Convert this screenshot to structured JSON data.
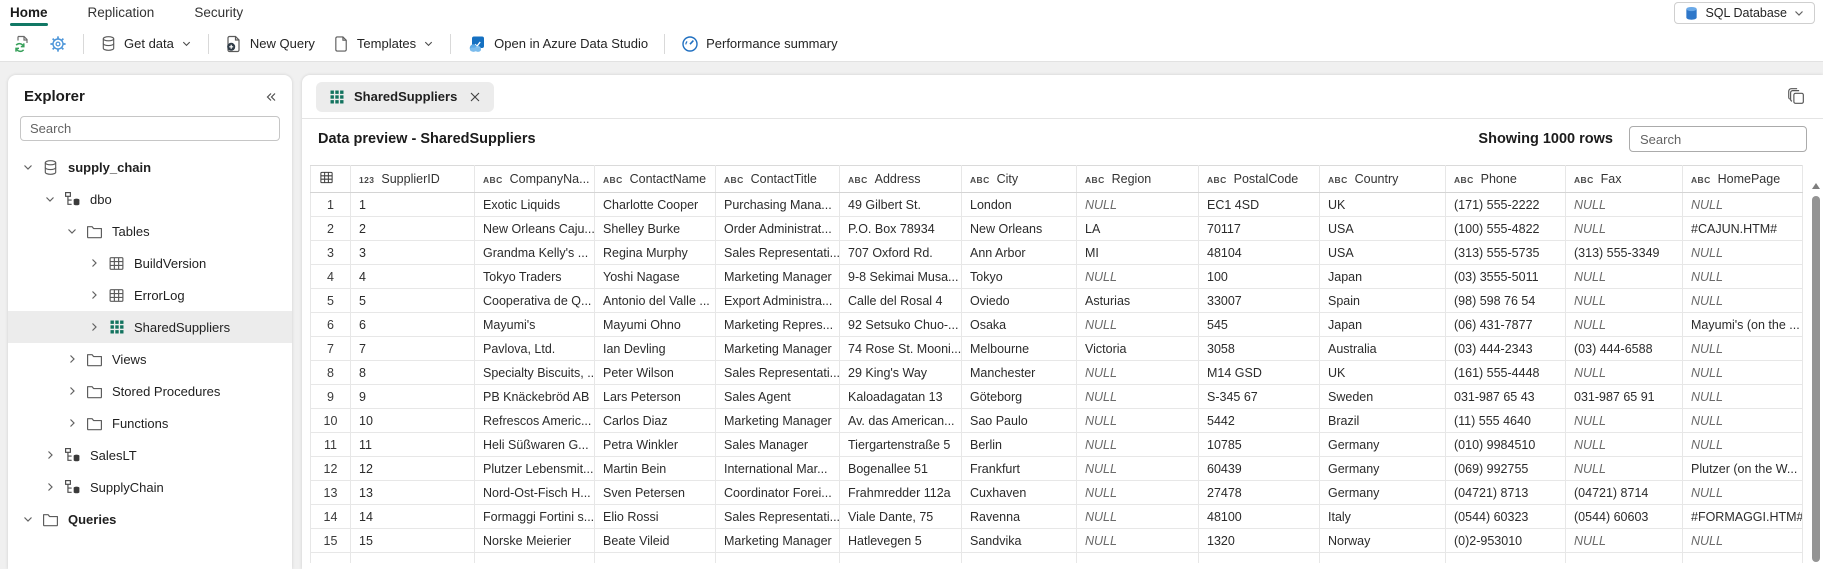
{
  "nav": {
    "tabs": [
      {
        "label": "Home",
        "active": true
      },
      {
        "label": "Replication",
        "active": false
      },
      {
        "label": "Security",
        "active": false
      }
    ],
    "db_button": {
      "icon": "sql-database-icon",
      "label": "SQL Database",
      "chevron_icon": "chevron-down-icon"
    }
  },
  "toolbar": {
    "items": [
      {
        "icon": "refresh-schema-icon",
        "label": ""
      },
      {
        "icon": "settings-gear-icon",
        "label": ""
      },
      {
        "type": "separator"
      },
      {
        "icon": "database-icon",
        "label": "Get data",
        "chevron": true
      },
      {
        "type": "separator"
      },
      {
        "icon": "new-query-icon",
        "label": "New Query"
      },
      {
        "icon": "template-file-icon",
        "label": "Templates",
        "chevron": true
      },
      {
        "type": "separator"
      },
      {
        "icon": "azure-data-studio-icon",
        "label": "Open in Azure Data Studio"
      },
      {
        "type": "separator"
      },
      {
        "icon": "performance-gauge-icon",
        "label": "Performance summary"
      }
    ]
  },
  "explorer": {
    "title": "Explorer",
    "collapse_icon": "collapse-double-chevron-icon",
    "search_placeholder": "Search",
    "tree": [
      {
        "label": "supply_chain",
        "icon": "database-icon",
        "chevron": "down",
        "depth": 0,
        "bold": true
      },
      {
        "label": "dbo",
        "icon": "schema-icon",
        "chevron": "down",
        "depth": 1
      },
      {
        "label": "Tables",
        "icon": "folder-icon",
        "chevron": "down",
        "depth": 2
      },
      {
        "label": "BuildVersion",
        "icon": "table-icon",
        "chevron": "right",
        "depth": 3
      },
      {
        "label": "ErrorLog",
        "icon": "table-icon",
        "chevron": "right",
        "depth": 3
      },
      {
        "label": "SharedSuppliers",
        "icon": "table-green-icon",
        "chevron": "right",
        "depth": 3,
        "selected": true
      },
      {
        "label": "Views",
        "icon": "folder-icon",
        "chevron": "right",
        "depth": 2
      },
      {
        "label": "Stored Procedures",
        "icon": "folder-icon",
        "chevron": "right",
        "depth": 2
      },
      {
        "label": "Functions",
        "icon": "folder-icon",
        "chevron": "right",
        "depth": 2
      },
      {
        "label": "SalesLT",
        "icon": "schema-icon",
        "chevron": "right",
        "depth": 1
      },
      {
        "label": "SupplyChain",
        "icon": "schema-icon",
        "chevron": "right",
        "depth": 1
      },
      {
        "label": "Queries",
        "icon": "folder-icon",
        "chevron": "down",
        "depth": 0,
        "bold": true
      }
    ]
  },
  "main": {
    "tab": {
      "icon": "table-green-icon",
      "label": "SharedSuppliers",
      "close_icon": "close-icon"
    },
    "copy_icon": "copy-icon",
    "title": "Data preview - SharedSuppliers",
    "rows_label": "Showing 1000 rows",
    "search_placeholder": "Search"
  },
  "table": {
    "columns": [
      {
        "type": "grid",
        "label": ""
      },
      {
        "type": "123",
        "label": "SupplierID"
      },
      {
        "type": "ABC",
        "label": "CompanyNa..."
      },
      {
        "type": "ABC",
        "label": "ContactName"
      },
      {
        "type": "ABC",
        "label": "ContactTitle"
      },
      {
        "type": "ABC",
        "label": "Address"
      },
      {
        "type": "ABC",
        "label": "City"
      },
      {
        "type": "ABC",
        "label": "Region"
      },
      {
        "type": "ABC",
        "label": "PostalCode"
      },
      {
        "type": "ABC",
        "label": "Country"
      },
      {
        "type": "ABC",
        "label": "Phone"
      },
      {
        "type": "ABC",
        "label": "Fax"
      },
      {
        "type": "ABC",
        "label": "HomePage"
      }
    ],
    "rows": [
      [
        "1",
        "1",
        "Exotic Liquids",
        "Charlotte Cooper",
        "Purchasing Mana...",
        "49 Gilbert St.",
        "London",
        "NULL",
        "EC1 4SD",
        "UK",
        "(171) 555-2222",
        "NULL",
        "NULL"
      ],
      [
        "2",
        "2",
        "New Orleans Caju...",
        "Shelley Burke",
        "Order Administrat...",
        "P.O. Box 78934",
        "New Orleans",
        "LA",
        "70117",
        "USA",
        "(100) 555-4822",
        "NULL",
        "#CAJUN.HTM#"
      ],
      [
        "3",
        "3",
        "Grandma Kelly's ...",
        "Regina Murphy",
        "Sales Representati...",
        "707 Oxford Rd.",
        "Ann Arbor",
        "MI",
        "48104",
        "USA",
        "(313) 555-5735",
        "(313) 555-3349",
        "NULL"
      ],
      [
        "4",
        "4",
        "Tokyo Traders",
        "Yoshi Nagase",
        "Marketing Manager",
        "9-8 Sekimai Musa...",
        "Tokyo",
        "NULL",
        "100",
        "Japan",
        "(03) 3555-5011",
        "NULL",
        "NULL"
      ],
      [
        "5",
        "5",
        "Cooperativa de Q...",
        "Antonio del Valle ...",
        "Export Administra...",
        "Calle del Rosal 4",
        "Oviedo",
        "Asturias",
        "33007",
        "Spain",
        "(98) 598 76 54",
        "NULL",
        "NULL"
      ],
      [
        "6",
        "6",
        "Mayumi's",
        "Mayumi Ohno",
        "Marketing Repres...",
        "92 Setsuko Chuo-...",
        "Osaka",
        "NULL",
        "545",
        "Japan",
        "(06) 431-7877",
        "NULL",
        "Mayumi's (on the ..."
      ],
      [
        "7",
        "7",
        "Pavlova, Ltd.",
        "Ian Devling",
        "Marketing Manager",
        "74 Rose St. Mooni...",
        "Melbourne",
        "Victoria",
        "3058",
        "Australia",
        "(03) 444-2343",
        "(03) 444-6588",
        "NULL"
      ],
      [
        "8",
        "8",
        "Specialty Biscuits, ...",
        "Peter Wilson",
        "Sales Representati...",
        "29 King's Way",
        "Manchester",
        "NULL",
        "M14 GSD",
        "UK",
        "(161) 555-4448",
        "NULL",
        "NULL"
      ],
      [
        "9",
        "9",
        "PB Knäckebröd AB",
        "Lars Peterson",
        "Sales Agent",
        "Kaloadagatan 13",
        "Göteborg",
        "NULL",
        "S-345 67",
        "Sweden",
        "031-987 65 43",
        "031-987 65 91",
        "NULL"
      ],
      [
        "10",
        "10",
        "Refrescos Americ...",
        "Carlos Diaz",
        "Marketing Manager",
        "Av. das American...",
        "Sao Paulo",
        "NULL",
        "5442",
        "Brazil",
        "(11) 555 4640",
        "NULL",
        "NULL"
      ],
      [
        "11",
        "11",
        "Heli Süßwaren G...",
        "Petra Winkler",
        "Sales Manager",
        "Tiergartenstraße 5",
        "Berlin",
        "NULL",
        "10785",
        "Germany",
        "(010) 9984510",
        "NULL",
        "NULL"
      ],
      [
        "12",
        "12",
        "Plutzer Lebensmit...",
        "Martin Bein",
        "International Mar...",
        "Bogenallee 51",
        "Frankfurt",
        "NULL",
        "60439",
        "Germany",
        "(069) 992755",
        "NULL",
        "Plutzer (on the W..."
      ],
      [
        "13",
        "13",
        "Nord-Ost-Fisch H...",
        "Sven Petersen",
        "Coordinator Forei...",
        "Frahmredder 112a",
        "Cuxhaven",
        "NULL",
        "27478",
        "Germany",
        "(04721) 8713",
        "(04721) 8714",
        "NULL"
      ],
      [
        "14",
        "14",
        "Formaggi Fortini s...",
        "Elio Rossi",
        "Sales Representati...",
        "Viale Dante, 75",
        "Ravenna",
        "NULL",
        "48100",
        "Italy",
        "(0544) 60323",
        "(0544) 60603",
        "#FORMAGGI.HTM#"
      ],
      [
        "15",
        "15",
        "Norske Meierier",
        "Beate Vileid",
        "Marketing Manager",
        "Hatlevegen 5",
        "Sandvika",
        "NULL",
        "1320",
        "Norway",
        "(0)2-953010",
        "NULL",
        "NULL"
      ]
    ]
  },
  "colors": {
    "accent_teal": "#117865",
    "table_icon_green": "#13735f",
    "null_text": "#6a6a6a",
    "selected_item_bg": "#ececec",
    "tab_bg": "#ececec",
    "icon_blue": "#4e96d9"
  }
}
